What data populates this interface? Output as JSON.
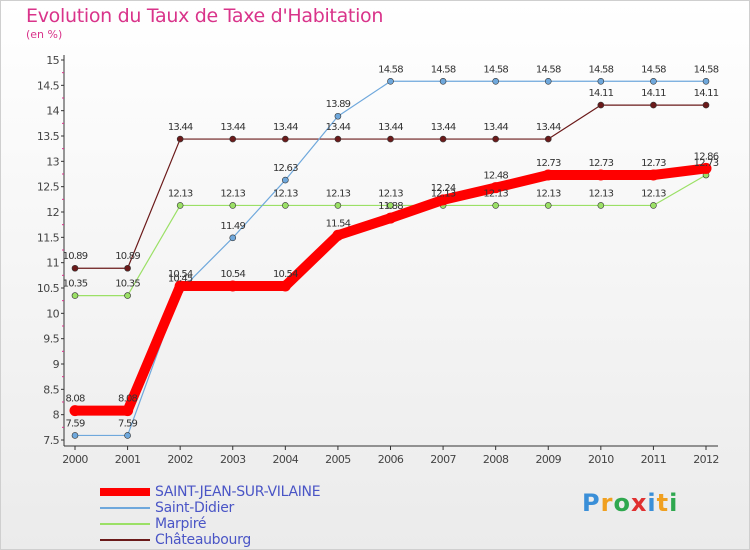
{
  "chart_data": {
    "type": "line",
    "title": "Evolution du Taux de Taxe d'Habitation",
    "ylabel": "(en %)",
    "xlabel": "",
    "x": [
      "2000",
      "2001",
      "2002",
      "2003",
      "2004",
      "2005",
      "2006",
      "2007",
      "2008",
      "2009",
      "2010",
      "2011",
      "2012"
    ],
    "ylim": [
      7.5,
      15
    ],
    "yticks": [
      "7.5",
      "8",
      "8.5",
      "9",
      "9.5",
      "10",
      "10.5",
      "11",
      "11.5",
      "12",
      "12.5",
      "13",
      "13.5",
      "14",
      "14.5",
      "15"
    ],
    "grid": false,
    "legend_position": "bottom-left",
    "series": [
      {
        "name": "Châteaubourg",
        "color": "#6b1a1a",
        "values": [
          10.89,
          10.89,
          13.44,
          13.44,
          13.44,
          13.44,
          13.44,
          13.44,
          13.44,
          13.44,
          14.11,
          14.11,
          14.11
        ],
        "labels": [
          "10.89",
          "10.89",
          "13.44",
          "13.44",
          "13.44",
          "13.44",
          "13.44",
          "13.44",
          "13.44",
          "13.44",
          "14.11",
          "14.11",
          "14.11"
        ]
      },
      {
        "name": "Marpiré",
        "color": "#9be066",
        "values": [
          10.35,
          10.35,
          12.13,
          12.13,
          12.13,
          12.13,
          12.13,
          12.13,
          12.13,
          12.13,
          12.13,
          12.13,
          12.73
        ],
        "labels": [
          "10.35",
          "10.35",
          "12.13",
          "12.13",
          "12.13",
          "12.13",
          "12.13",
          "12.13",
          "12.13",
          "12.13",
          "12.13",
          "12.13",
          "12.73"
        ]
      },
      {
        "name": "Saint-Didier",
        "color": "#6fa8dc",
        "values": [
          7.59,
          7.59,
          10.45,
          11.49,
          12.63,
          13.89,
          14.58,
          14.58,
          14.58,
          14.58,
          14.58,
          14.58,
          14.58
        ],
        "labels": [
          "7.59",
          "7.59",
          "10.45",
          "11.49",
          "12.63",
          "13.89",
          "14.58",
          "14.58",
          "14.58",
          "14.58",
          "14.58",
          "14.58",
          "14.58"
        ]
      },
      {
        "name": "SAINT-JEAN-SUR-VILAINE",
        "color": "#ff0000",
        "values": [
          8.08,
          8.08,
          10.54,
          10.54,
          10.54,
          11.54,
          11.88,
          12.24,
          12.48,
          12.73,
          12.73,
          12.73,
          12.86
        ],
        "labels": [
          "8.08",
          "8.08",
          "10.54",
          "10.54",
          "10.54",
          "11.54",
          "11.88",
          "12.24",
          "12.48",
          "12.73",
          "12.73",
          "12.73",
          "12.86"
        ]
      }
    ]
  },
  "legend": [
    {
      "label": "SAINT-JEAN-SUR-VILAINE",
      "color": "#ff0000",
      "thick": true
    },
    {
      "label": "Saint-Didier",
      "color": "#6fa8dc",
      "thick": false
    },
    {
      "label": "Marpiré",
      "color": "#9be066",
      "thick": false
    },
    {
      "label": "Châteaubourg",
      "color": "#6b1a1a",
      "thick": false
    }
  ],
  "logo": {
    "letters": [
      "P",
      "r",
      "o",
      "x",
      "i",
      "t",
      "i"
    ],
    "colors": [
      "#3a8fd8",
      "#f0a020",
      "#2fa84f",
      "#e03030",
      "#3a8fd8",
      "#f0a020",
      "#2fa84f"
    ]
  }
}
